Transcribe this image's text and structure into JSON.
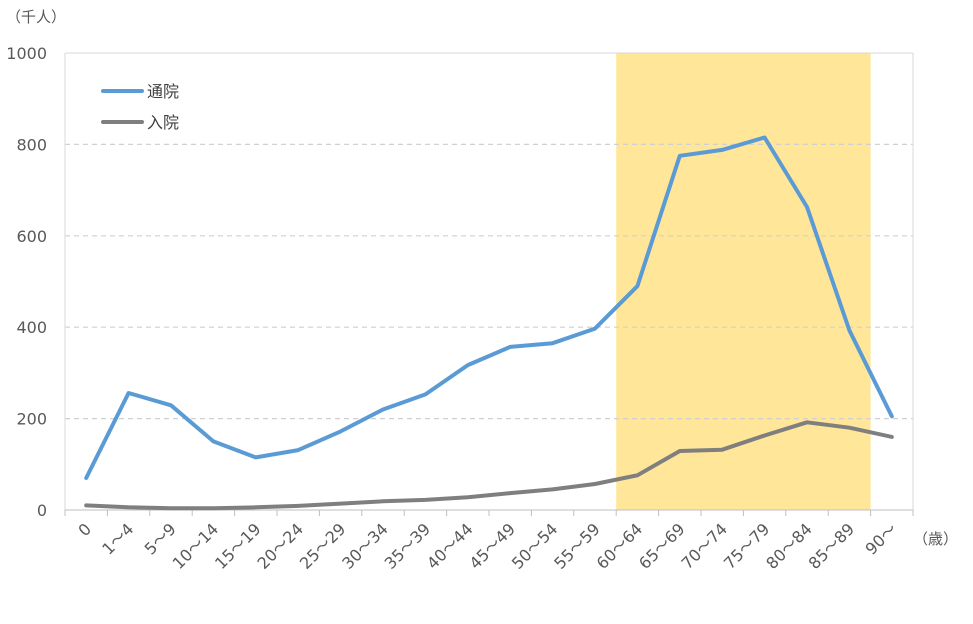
{
  "chart_data": {
    "type": "line",
    "y_unit_label": "（千人）",
    "x_unit_label": "（歳）",
    "categories": [
      "0",
      "1～4",
      "5～9",
      "10～14",
      "15～19",
      "20～24",
      "25～29",
      "30～34",
      "35～39",
      "40～44",
      "45～49",
      "50～54",
      "55～59",
      "60～64",
      "65～69",
      "70～74",
      "75～79",
      "80～84",
      "85～89",
      "90～"
    ],
    "ylim": [
      0,
      1000
    ],
    "yticks": [
      "0",
      "200",
      "400",
      "600",
      "800",
      "1000"
    ],
    "grid": true,
    "legend_position": "top-left",
    "highlight_band": {
      "from": "60～64",
      "to": "85～89",
      "color": "#FFE699"
    },
    "series": [
      {
        "name": "通院",
        "color": "#5B9BD5",
        "values": [
          70,
          256,
          229,
          150,
          115,
          131,
          172,
          220,
          253,
          317,
          357,
          365,
          397,
          490,
          775,
          788,
          815,
          663,
          393,
          205
        ]
      },
      {
        "name": "入院",
        "color": "#7F7F7F",
        "values": [
          10,
          6,
          4,
          4,
          6,
          9,
          14,
          19,
          22,
          28,
          37,
          45,
          57,
          76,
          129,
          132,
          163,
          192,
          180,
          160
        ]
      }
    ]
  }
}
